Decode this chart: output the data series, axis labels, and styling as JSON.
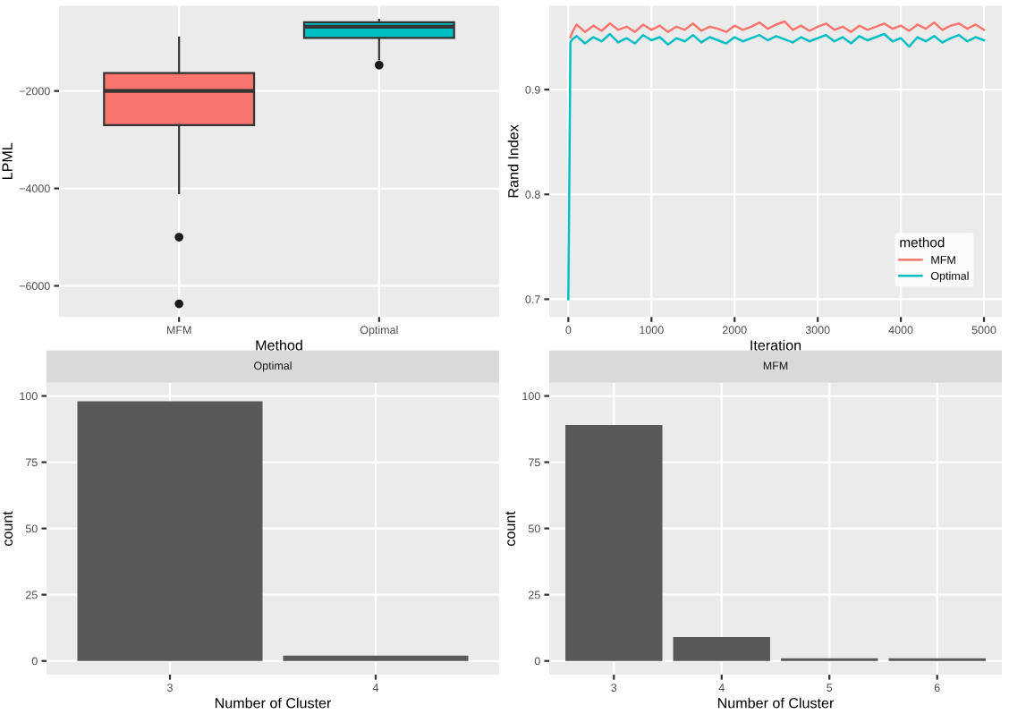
{
  "chart_data": [
    {
      "type": "box",
      "xlabel": "Method",
      "ylabel": "LPML",
      "categories": [
        "MFM",
        "Optimal"
      ],
      "colors": [
        "#f8766d",
        "#00bfc4"
      ],
      "boxes": [
        {
          "low": -4100,
          "q1": -2700,
          "median": -2000,
          "q3": -1630,
          "high": -900,
          "outliers": [
            -5000,
            -6370
          ]
        },
        {
          "low": -1350,
          "q1": -910,
          "median": -680,
          "q3": -590,
          "high": -540,
          "outliers": [
            -1470
          ]
        }
      ],
      "ylim": [
        -6640,
        -250
      ],
      "yticks": [
        -6000,
        -4000,
        -2000
      ],
      "grid": true
    },
    {
      "type": "line",
      "xlabel": "Iteration",
      "ylabel": "Rand Index",
      "legend_title": "method",
      "legend": "bottom right",
      "grid": true,
      "xlim": [
        -230,
        5215
      ],
      "xticks": [
        0,
        1000,
        2000,
        3000,
        4000,
        5000
      ],
      "ylim": [
        0.683,
        0.98
      ],
      "yticks": [
        0.7,
        0.8,
        0.9
      ],
      "x": [
        0,
        25,
        50,
        100,
        200,
        300,
        400,
        500,
        600,
        700,
        800,
        900,
        1000,
        1100,
        1200,
        1300,
        1400,
        1500,
        1600,
        1700,
        1800,
        1900,
        2000,
        2100,
        2200,
        2300,
        2400,
        2500,
        2600,
        2700,
        2800,
        2900,
        3000,
        3100,
        3200,
        3300,
        3400,
        3500,
        3600,
        3700,
        3800,
        3900,
        4000,
        4100,
        4200,
        4300,
        4400,
        4500,
        4600,
        4700,
        4800,
        4900,
        5000
      ],
      "series": [
        {
          "name": "MFM",
          "color": "#f8766d",
          "values": [
            null,
            0.95,
            0.955,
            0.962,
            0.955,
            0.961,
            0.956,
            0.963,
            0.957,
            0.96,
            0.955,
            0.962,
            0.957,
            0.961,
            0.955,
            0.96,
            0.957,
            0.963,
            0.956,
            0.96,
            0.958,
            0.955,
            0.961,
            0.957,
            0.96,
            0.964,
            0.958,
            0.962,
            0.965,
            0.957,
            0.961,
            0.956,
            0.96,
            0.963,
            0.957,
            0.96,
            0.955,
            0.961,
            0.957,
            0.96,
            0.963,
            0.958,
            0.961,
            0.956,
            0.962,
            0.958,
            0.964,
            0.957,
            0.961,
            0.963,
            0.958,
            0.962,
            0.957
          ]
        },
        {
          "name": "Optimal",
          "color": "#00bfc4",
          "values": [
            0.7,
            0.945,
            0.948,
            0.951,
            0.944,
            0.95,
            0.946,
            0.953,
            0.945,
            0.949,
            0.944,
            0.952,
            0.947,
            0.95,
            0.943,
            0.949,
            0.946,
            0.952,
            0.945,
            0.95,
            0.947,
            0.944,
            0.95,
            0.946,
            0.949,
            0.952,
            0.947,
            0.951,
            0.948,
            0.945,
            0.95,
            0.946,
            0.949,
            0.952,
            0.946,
            0.95,
            0.944,
            0.951,
            0.947,
            0.95,
            0.953,
            0.946,
            0.949,
            0.941,
            0.95,
            0.946,
            0.951,
            0.945,
            0.949,
            0.952,
            0.946,
            0.95,
            0.947
          ]
        }
      ]
    },
    {
      "type": "bar",
      "title": "Optimal",
      "xlabel": "Number of Cluster",
      "ylabel": "count",
      "categories": [
        "3",
        "4"
      ],
      "values": [
        98,
        2
      ],
      "color": "#595959",
      "ylim": [
        -5.2,
        105
      ],
      "yticks": [
        0,
        25,
        50,
        75,
        100
      ],
      "grid": true
    },
    {
      "type": "bar",
      "title": "MFM",
      "xlabel": "Number of Cluster",
      "ylabel": "count",
      "categories": [
        "3",
        "4",
        "5",
        "6"
      ],
      "values": [
        89,
        9,
        1,
        1
      ],
      "color": "#595959",
      "ylim": [
        -5.2,
        105
      ],
      "yticks": [
        0,
        25,
        50,
        75,
        100
      ],
      "grid": true
    }
  ]
}
